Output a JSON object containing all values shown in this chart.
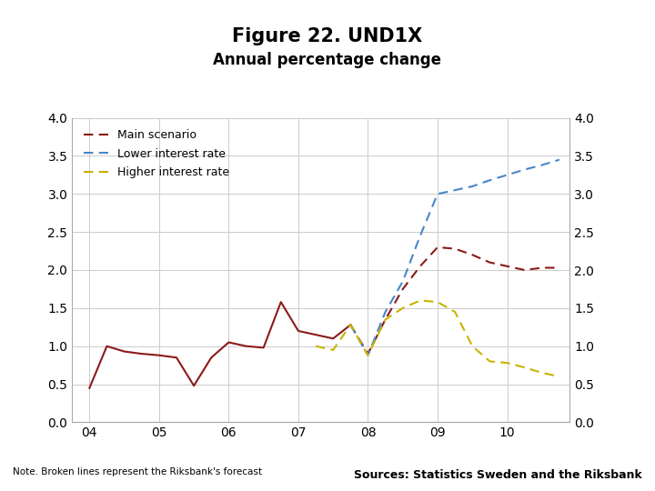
{
  "title": "Figure 22. UND1X",
  "subtitle": "Annual percentage change",
  "title_fontsize": 15,
  "subtitle_fontsize": 12,
  "note": "Note. Broken lines represent the Riksbank's forecast",
  "sources": "Sources: Statistics Sweden and the Riksbank",
  "xlim": [
    2003.75,
    2010.9
  ],
  "ylim": [
    0.0,
    4.0
  ],
  "yticks": [
    0.0,
    0.5,
    1.0,
    1.5,
    2.0,
    2.5,
    3.0,
    3.5,
    4.0
  ],
  "xticks": [
    2004,
    2005,
    2006,
    2007,
    2008,
    2009,
    2010
  ],
  "xticklabels": [
    "04",
    "05",
    "06",
    "07",
    "08",
    "09",
    "10"
  ],
  "main_color": "#8B1A1A",
  "lower_color": "#4A86C8",
  "higher_color": "#C8B400",
  "main_solid_x": [
    2004.0,
    2004.25,
    2004.5,
    2004.75,
    2005.0,
    2005.25,
    2005.5,
    2005.75,
    2006.0,
    2006.25,
    2006.5,
    2006.75,
    2007.0,
    2007.25,
    2007.5,
    2007.75
  ],
  "main_solid_y": [
    0.45,
    1.0,
    0.93,
    0.9,
    0.88,
    0.85,
    0.48,
    0.85,
    1.05,
    1.0,
    0.98,
    1.58,
    1.2,
    1.15,
    1.1,
    1.28
  ],
  "main_dashed_x": [
    2007.75,
    2008.0,
    2008.25,
    2008.5,
    2008.75,
    2009.0,
    2009.25,
    2009.5,
    2009.75,
    2010.0,
    2010.25,
    2010.5,
    2010.75
  ],
  "main_dashed_y": [
    1.28,
    0.9,
    1.35,
    1.75,
    2.05,
    2.3,
    2.28,
    2.2,
    2.1,
    2.05,
    2.0,
    2.03,
    2.03
  ],
  "lower_dashed_x": [
    2007.75,
    2008.0,
    2008.25,
    2008.5,
    2008.75,
    2009.0,
    2009.25,
    2009.5,
    2009.75,
    2010.0,
    2010.25,
    2010.5,
    2010.75
  ],
  "lower_dashed_y": [
    1.28,
    0.88,
    1.45,
    1.85,
    2.45,
    3.0,
    3.05,
    3.1,
    3.18,
    3.25,
    3.32,
    3.38,
    3.45
  ],
  "higher_dashed_x": [
    2007.25,
    2007.5,
    2007.75,
    2008.0,
    2008.25,
    2008.5,
    2008.75,
    2009.0,
    2009.25,
    2009.5,
    2009.75,
    2010.0,
    2010.25,
    2010.5,
    2010.75
  ],
  "higher_dashed_y": [
    1.0,
    0.95,
    1.28,
    0.88,
    1.35,
    1.5,
    1.6,
    1.58,
    1.45,
    1.0,
    0.8,
    0.78,
    0.72,
    0.65,
    0.6
  ],
  "legend_labels": [
    "Main scenario",
    "Lower interest rate",
    "Higher interest rate"
  ],
  "background_color": "#FFFFFF",
  "grid_color": "#CCCCCC",
  "footer_bar_color": "#1a3a6e"
}
